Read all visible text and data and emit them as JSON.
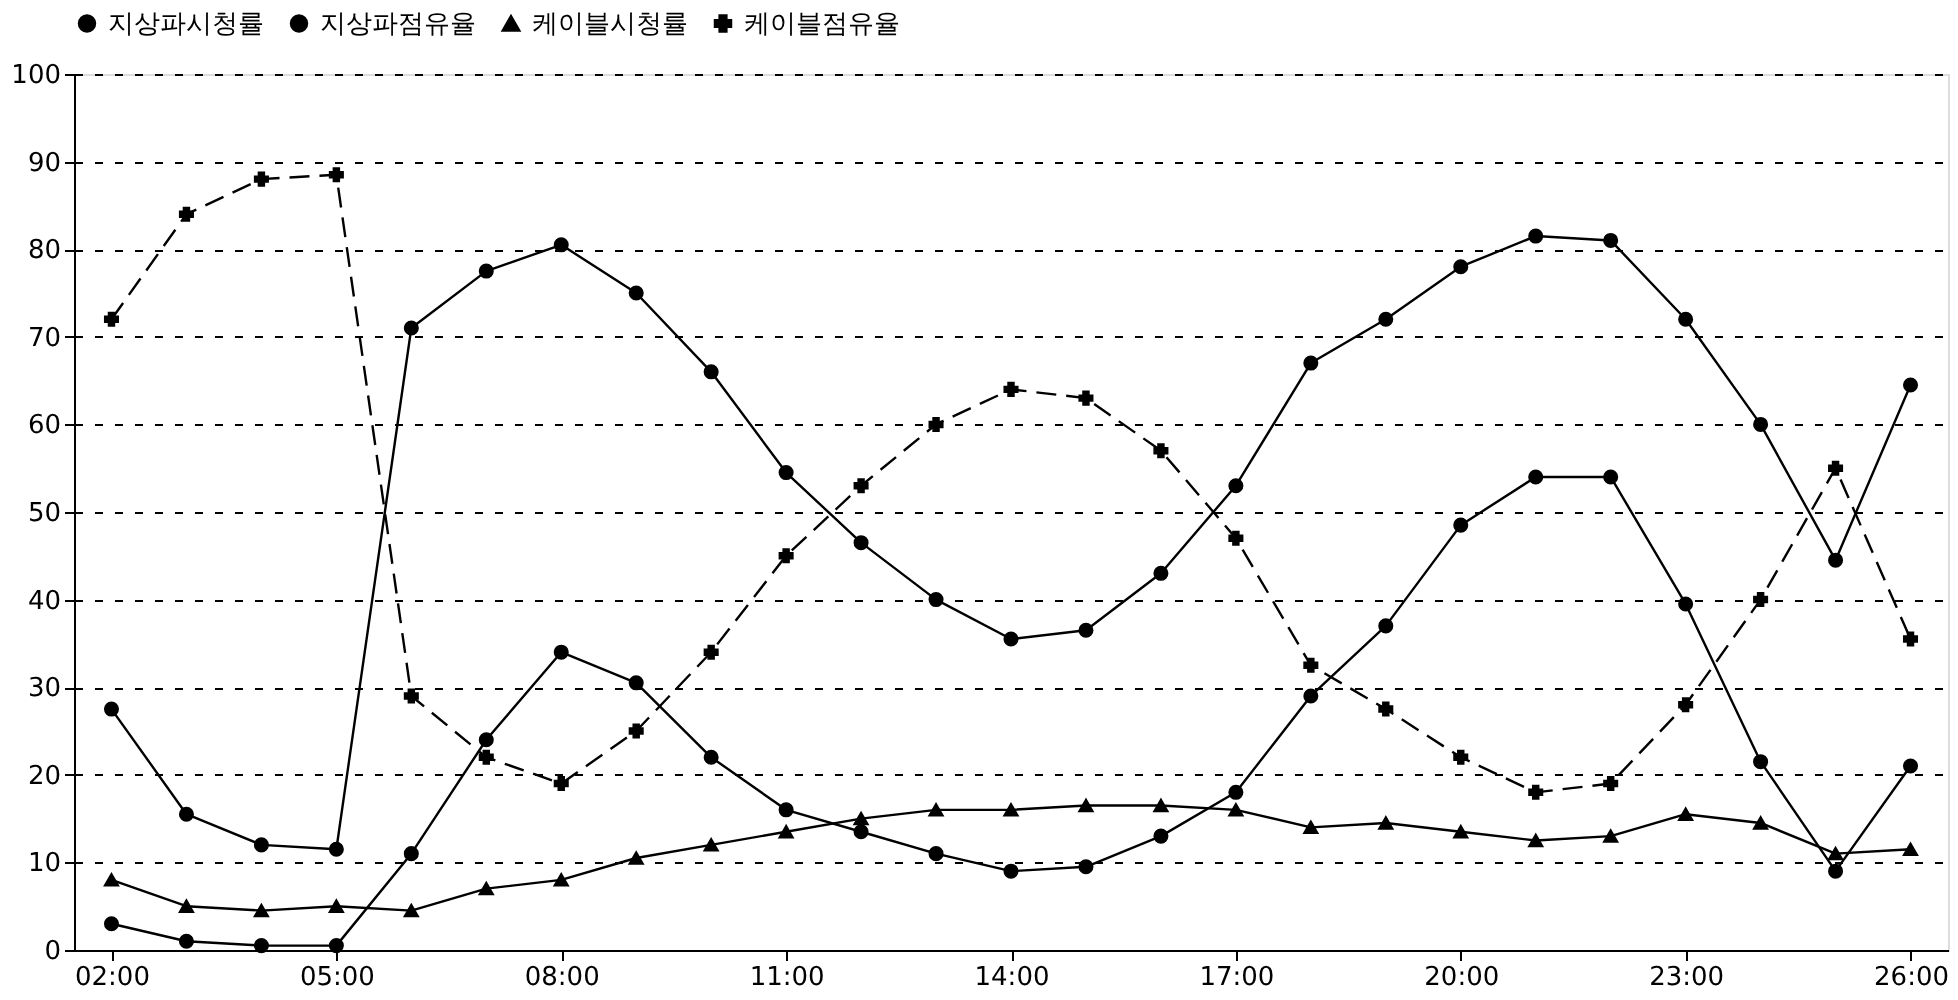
{
  "chart_data": {
    "type": "line",
    "x": [
      2,
      3,
      4,
      5,
      6,
      7,
      8,
      9,
      10,
      11,
      12,
      13,
      14,
      15,
      16,
      17,
      18,
      19,
      20,
      21,
      22,
      23,
      24,
      25,
      26
    ],
    "xlim": [
      1.5,
      26.5
    ],
    "xticks": [
      {
        "value": 2,
        "label": "02:00"
      },
      {
        "value": 5,
        "label": "05:00"
      },
      {
        "value": 8,
        "label": "08:00"
      },
      {
        "value": 11,
        "label": "11:00"
      },
      {
        "value": 14,
        "label": "14:00"
      },
      {
        "value": 17,
        "label": "17:00"
      },
      {
        "value": 20,
        "label": "20:00"
      },
      {
        "value": 23,
        "label": "23:00"
      },
      {
        "value": 26,
        "label": "26:00"
      }
    ],
    "ylim": [
      0,
      100
    ],
    "yticks": [
      0,
      10,
      20,
      30,
      40,
      50,
      60,
      70,
      80,
      90,
      100
    ],
    "grid": "y",
    "legend": "top",
    "series": [
      {
        "name": "지상파시청률",
        "color": "#000000",
        "marker": "circle",
        "line_style": "solid",
        "values": [
          3,
          1,
          0.5,
          0.5,
          11,
          24,
          34,
          30.5,
          22,
          16,
          13.5,
          11,
          9,
          9.5,
          13,
          18,
          29,
          37,
          48.5,
          54,
          54,
          39.5,
          21.5,
          9,
          21
        ]
      },
      {
        "name": "지상파점유율",
        "color": "#000000",
        "marker": "circle",
        "line_style": "solid",
        "values": [
          27.5,
          15.5,
          12,
          11.5,
          71,
          77.5,
          80.5,
          75,
          66,
          54.5,
          46.5,
          40,
          35.5,
          36.5,
          43,
          53,
          67,
          72,
          78,
          81.5,
          81,
          72,
          60,
          44.5,
          64.5
        ]
      },
      {
        "name": "케이블시청률",
        "color": "#000000",
        "marker": "triangle",
        "line_style": "solid",
        "values": [
          8,
          5,
          4.5,
          5,
          4.5,
          7,
          8,
          10.5,
          12,
          13.5,
          15,
          16,
          16,
          16.5,
          16.5,
          16,
          14,
          14.5,
          13.5,
          12.5,
          13,
          15.5,
          14.5,
          11,
          11.5
        ]
      },
      {
        "name": "케이블점유율",
        "color": "#000000",
        "marker": "cross",
        "line_style": "dashed",
        "values": [
          72,
          84,
          88,
          88.5,
          29,
          22,
          19,
          25,
          34,
          45,
          53,
          60,
          64,
          63,
          57,
          47,
          32.5,
          27.5,
          22,
          18,
          19,
          28,
          40,
          55,
          35.5
        ]
      }
    ]
  }
}
